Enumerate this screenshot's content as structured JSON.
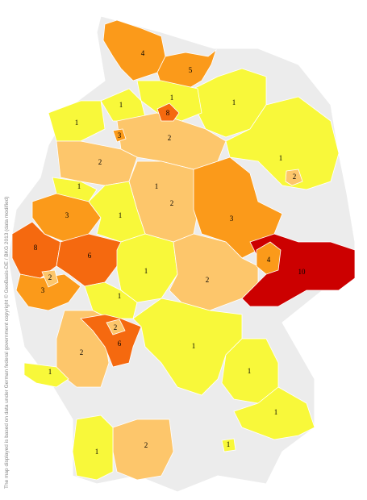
{
  "regions": [
    {
      "value": 4,
      "color": "#fb9a1a"
    },
    {
      "value": 5,
      "color": "#fb9a1a"
    },
    {
      "value": 1,
      "color": "#f8f83a"
    },
    {
      "value": 1,
      "color": "#f8f83a"
    },
    {
      "value": 1,
      "color": "#f8f83a"
    },
    {
      "value": 1,
      "color": "#f8f83a"
    },
    {
      "value": 2,
      "color": "#fdc66b"
    },
    {
      "value": 1,
      "color": "#f8f83a"
    },
    {
      "value": 2,
      "color": "#fdc66b"
    },
    {
      "value": 1,
      "color": "#f8f83a"
    },
    {
      "value": 1,
      "color": "#f8f83a"
    },
    {
      "value": 2,
      "color": "#fdc66b"
    },
    {
      "value": 3,
      "color": "#fb9a1a"
    },
    {
      "value": 1,
      "color": "#f8f83a"
    },
    {
      "value": 3,
      "color": "#fb9a1a"
    },
    {
      "value": 8,
      "color": "#f5690f"
    },
    {
      "value": 6,
      "color": "#f5690f"
    },
    {
      "value": 3,
      "color": "#fb9a1a"
    },
    {
      "value": 1,
      "color": "#f8f83a"
    },
    {
      "value": 10,
      "color": "#cc0000"
    },
    {
      "value": 2,
      "color": "#fdc66b"
    },
    {
      "value": 1,
      "color": "#f8f83a"
    },
    {
      "value": 2,
      "color": "#fdc66b"
    },
    {
      "value": 6,
      "color": "#f5690f"
    },
    {
      "value": 1,
      "color": "#f8f83a"
    },
    {
      "value": 1,
      "color": "#f8f83a"
    },
    {
      "value": 1,
      "color": "#f8f83a"
    },
    {
      "value": 1,
      "color": "#f8f83a"
    },
    {
      "value": 2,
      "color": "#fdc66b"
    },
    {
      "value": 1,
      "color": "#f8f83a"
    },
    {
      "value": 8,
      "color": "#f5690f"
    },
    {
      "value": 2,
      "color": "#fdc66b"
    },
    {
      "value": 3,
      "color": "#fb9a1a"
    },
    {
      "value": 4,
      "color": "#fb9a1a"
    },
    {
      "value": 2,
      "color": "#fdc66b"
    },
    {
      "value": 2,
      "color": "#fdc66b"
    },
    {
      "value": 1,
      "color": "#f8f83a"
    }
  ],
  "attribution": "The map displayed is based on data under German federal government copyright © GeoBasis-DE / BKG 2013 (data modified)"
}
